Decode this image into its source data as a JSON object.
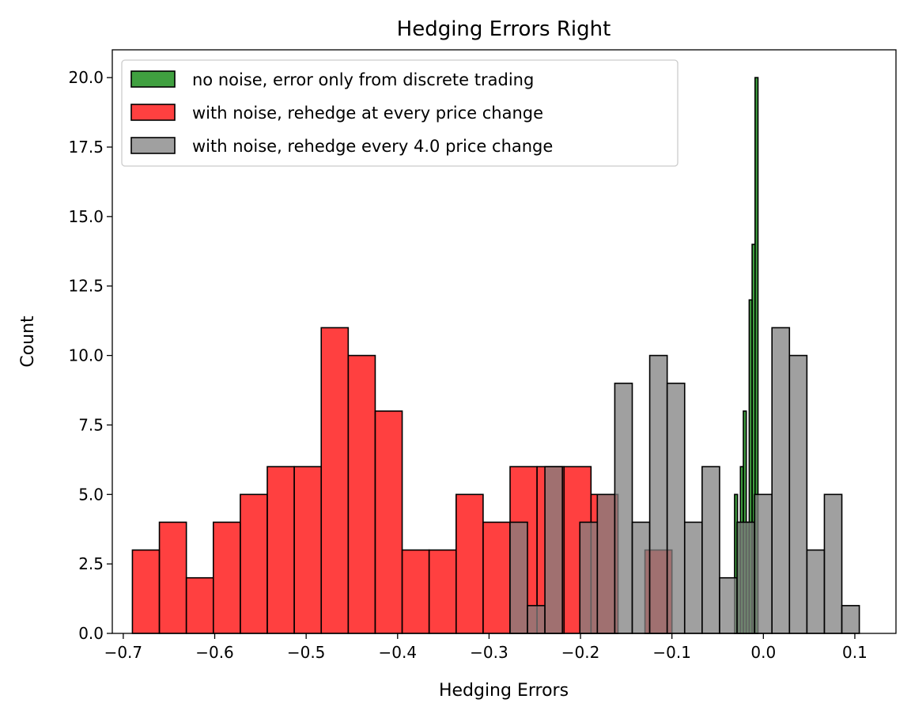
{
  "chart_data": {
    "type": "histogram",
    "title": "Hedging Errors Right",
    "xlabel": "Hedging Errors",
    "ylabel": "Count",
    "xlim": [
      -0.712,
      0.145
    ],
    "ylim": [
      0,
      21
    ],
    "xticks": [
      -0.7,
      -0.6,
      -0.5,
      -0.4,
      -0.3,
      -0.2,
      -0.1,
      0.0,
      0.1
    ],
    "xtick_labels": [
      "−0.7",
      "−0.6",
      "−0.5",
      "−0.4",
      "−0.3",
      "−0.2",
      "−0.1",
      "0.0",
      "0.1"
    ],
    "yticks": [
      0,
      2.5,
      5,
      7.5,
      10,
      12.5,
      15,
      17.5,
      20
    ],
    "ytick_labels": [
      "0.0",
      "2.5",
      "5.0",
      "7.5",
      "10.0",
      "12.5",
      "15.0",
      "17.5",
      "20.0"
    ],
    "legend_position": "top-left",
    "series": [
      {
        "name": "no noise, error only from discrete trading",
        "color": "#008000",
        "opacity": 0.75,
        "bins": [
          {
            "x0": -0.0315,
            "x1": -0.0283,
            "count": 5
          },
          {
            "x0": -0.0283,
            "x1": -0.0251,
            "count": 4
          },
          {
            "x0": -0.0251,
            "x1": -0.0219,
            "count": 6
          },
          {
            "x0": -0.0219,
            "x1": -0.0187,
            "count": 8
          },
          {
            "x0": -0.0187,
            "x1": -0.0155,
            "count": 4
          },
          {
            "x0": -0.0155,
            "x1": -0.0123,
            "count": 12
          },
          {
            "x0": -0.0123,
            "x1": -0.0091,
            "count": 14
          },
          {
            "x0": -0.0091,
            "x1": -0.0059,
            "count": 20
          }
        ]
      },
      {
        "name": "with noise, rehedge at every price change",
        "color": "#ff0000",
        "opacity": 0.75,
        "bins": [
          {
            "x0": -0.69,
            "x1": -0.6605,
            "count": 3
          },
          {
            "x0": -0.6605,
            "x1": -0.631,
            "count": 4
          },
          {
            "x0": -0.631,
            "x1": -0.6015,
            "count": 2
          },
          {
            "x0": -0.6015,
            "x1": -0.572,
            "count": 4
          },
          {
            "x0": -0.572,
            "x1": -0.5425,
            "count": 5
          },
          {
            "x0": -0.5425,
            "x1": -0.513,
            "count": 6
          },
          {
            "x0": -0.513,
            "x1": -0.4835,
            "count": 6
          },
          {
            "x0": -0.4835,
            "x1": -0.454,
            "count": 11
          },
          {
            "x0": -0.454,
            "x1": -0.4245,
            "count": 10
          },
          {
            "x0": -0.4245,
            "x1": -0.395,
            "count": 8
          },
          {
            "x0": -0.395,
            "x1": -0.3655,
            "count": 3
          },
          {
            "x0": -0.3655,
            "x1": -0.336,
            "count": 3
          },
          {
            "x0": -0.336,
            "x1": -0.3065,
            "count": 5
          },
          {
            "x0": -0.3065,
            "x1": -0.277,
            "count": 4
          },
          {
            "x0": -0.277,
            "x1": -0.2475,
            "count": 6
          },
          {
            "x0": -0.2475,
            "x1": -0.218,
            "count": 6
          },
          {
            "x0": -0.218,
            "x1": -0.1885,
            "count": 6
          },
          {
            "x0": -0.1885,
            "x1": -0.159,
            "count": 5
          },
          {
            "x0": -0.159,
            "x1": -0.1295,
            "count": 0
          },
          {
            "x0": -0.1295,
            "x1": -0.1,
            "count": 3
          }
        ]
      },
      {
        "name": "with noise, rehedge every 4.0 price change",
        "color": "#808080",
        "opacity": 0.75,
        "bins": [
          {
            "x0": -0.2771,
            "x1": -0.258,
            "count": 4
          },
          {
            "x0": -0.258,
            "x1": -0.2389,
            "count": 1
          },
          {
            "x0": -0.2389,
            "x1": -0.2198,
            "count": 6
          },
          {
            "x0": -0.2198,
            "x1": -0.2007,
            "count": 0
          },
          {
            "x0": -0.2007,
            "x1": -0.1816,
            "count": 4
          },
          {
            "x0": -0.1816,
            "x1": -0.1625,
            "count": 5
          },
          {
            "x0": -0.1625,
            "x1": -0.1434,
            "count": 9
          },
          {
            "x0": -0.1434,
            "x1": -0.1243,
            "count": 4
          },
          {
            "x0": -0.1243,
            "x1": -0.1052,
            "count": 10
          },
          {
            "x0": -0.1052,
            "x1": -0.0861,
            "count": 9
          },
          {
            "x0": -0.0861,
            "x1": -0.067,
            "count": 4
          },
          {
            "x0": -0.067,
            "x1": -0.0479,
            "count": 6
          },
          {
            "x0": -0.0479,
            "x1": -0.0288,
            "count": 2
          },
          {
            "x0": -0.0288,
            "x1": -0.0097,
            "count": 4
          },
          {
            "x0": -0.0097,
            "x1": 0.0094,
            "count": 5
          },
          {
            "x0": 0.0094,
            "x1": 0.0285,
            "count": 11
          },
          {
            "x0": 0.0285,
            "x1": 0.0476,
            "count": 10
          },
          {
            "x0": 0.0476,
            "x1": 0.0667,
            "count": 3
          },
          {
            "x0": 0.0667,
            "x1": 0.0858,
            "count": 5
          },
          {
            "x0": 0.0858,
            "x1": 0.1049,
            "count": 1
          }
        ]
      }
    ]
  }
}
